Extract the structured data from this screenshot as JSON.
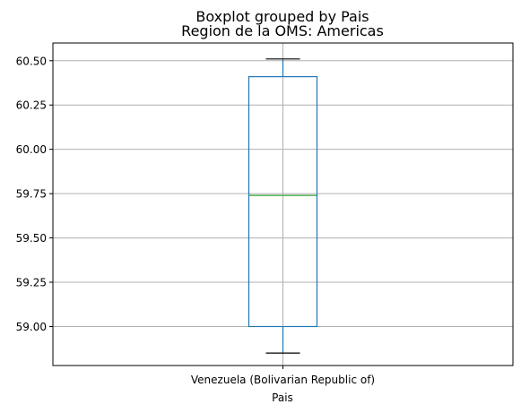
{
  "chart_data": {
    "type": "boxplot",
    "suptitle": "Boxplot grouped by Pais",
    "title": "Region de la OMS: Americas",
    "xlabel": "Pais",
    "ylabel": "",
    "categories": [
      "Venezuela (Bolivarian Republic of)"
    ],
    "boxes": [
      {
        "category": "Venezuela (Bolivarian Republic of)",
        "whisker_low": 58.85,
        "q1": 59.0,
        "median": 59.74,
        "q3": 60.41,
        "whisker_high": 60.51
      }
    ],
    "ylim": [
      58.78,
      60.6
    ],
    "yticks": [
      59.0,
      59.25,
      59.5,
      59.75,
      60.0,
      60.25,
      60.5
    ],
    "ytick_labels": [
      "59.00",
      "59.25",
      "59.50",
      "59.75",
      "60.00",
      "60.25",
      "60.50"
    ],
    "grid": true,
    "colors": {
      "box": "#1f77b4",
      "median": "#2ca02c",
      "whisker_cap": "#000000",
      "grid": "#b0b0b0"
    }
  }
}
